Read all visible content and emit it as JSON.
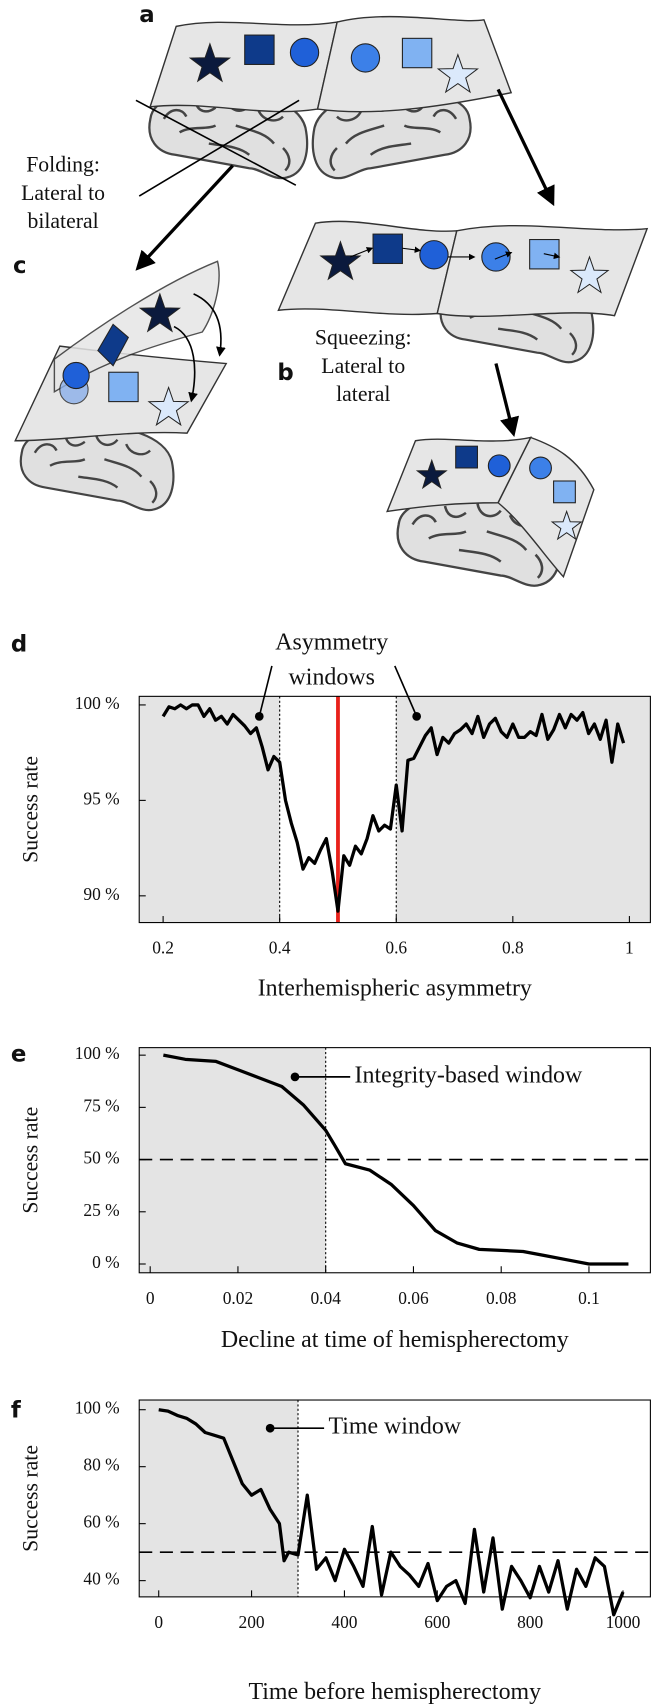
{
  "diagram": {
    "labels": [
      "a",
      "b",
      "c"
    ],
    "folding": [
      "Folding:",
      "Lateral to",
      "bilateral"
    ],
    "squeezing": [
      "Squeezing:",
      "Lateral to",
      "lateral"
    ]
  },
  "chart_data": [
    {
      "type": "line",
      "label": "d",
      "ylabel": "Success rate",
      "xlabel": "Interhemispheric asymmetry",
      "color": "#000000",
      "x": [
        0.2,
        0.21,
        0.22,
        0.23,
        0.24,
        0.25,
        0.26,
        0.27,
        0.28,
        0.29,
        0.3,
        0.31,
        0.32,
        0.33,
        0.34,
        0.35,
        0.36,
        0.37,
        0.38,
        0.39,
        0.4,
        0.41,
        0.42,
        0.43,
        0.44,
        0.45,
        0.46,
        0.47,
        0.48,
        0.49,
        0.5,
        0.51,
        0.52,
        0.53,
        0.54,
        0.55,
        0.56,
        0.57,
        0.58,
        0.59,
        0.6,
        0.61,
        0.62,
        0.63,
        0.64,
        0.65,
        0.66,
        0.67,
        0.68,
        0.69,
        0.7,
        0.71,
        0.72,
        0.73,
        0.74,
        0.75,
        0.76,
        0.77,
        0.78,
        0.79,
        0.8,
        0.81,
        0.82,
        0.83,
        0.84,
        0.85,
        0.86,
        0.87,
        0.88,
        0.89,
        0.9,
        0.91,
        0.92,
        0.93,
        0.94,
        0.95,
        0.96,
        0.97,
        0.98,
        0.99
      ],
      "values": [
        99.4,
        99.9,
        99.8,
        100,
        99.8,
        100,
        100,
        99.4,
        99.8,
        99.2,
        99.4,
        99.0,
        99.5,
        99.2,
        98.9,
        98.5,
        98.8,
        97.8,
        96.6,
        97.3,
        97.0,
        95.0,
        93.8,
        92.8,
        91.4,
        92.0,
        91.7,
        92.4,
        93.0,
        91.3,
        89.2,
        92.1,
        91.6,
        92.6,
        92.2,
        93.0,
        94.2,
        93.4,
        93.7,
        93.5,
        95.8,
        93.4,
        97.1,
        97.2,
        97.8,
        98.4,
        98.8,
        97.4,
        98.3,
        98.0,
        98.5,
        98.7,
        99.0,
        98.5,
        99.4,
        98.3,
        99.0,
        99.3,
        98.6,
        98.3,
        99.0,
        98.3,
        98.3,
        98.6,
        98.4,
        99.5,
        98.2,
        98.7,
        99.5,
        98.8,
        99.5,
        99.2,
        99.6,
        98.5,
        99.0,
        98.2,
        99.2,
        97.0,
        99.0,
        98.0
      ],
      "xlim": [
        0.159,
        1.036
      ],
      "ylim": [
        88.6,
        100.45
      ],
      "xticks": [
        0.2,
        0.4,
        0.6,
        0.8,
        1
      ],
      "yticks": [
        {
          "value": 90,
          "label": "90 %"
        },
        {
          "value": 95,
          "label": "95 %"
        },
        {
          "value": 100,
          "label": "100 %"
        }
      ],
      "shade_below": 0.4,
      "shade_above": 0.6,
      "marker_x": 0.5,
      "marker_color": "#e8211b",
      "annotation": {
        "text": [
          "Asymmetry",
          "windows"
        ],
        "points": [
          [
            0.365,
            99.4
          ],
          [
            0.635,
            99.4
          ]
        ]
      }
    },
    {
      "type": "line",
      "label": "e",
      "ylabel": "Success rate",
      "xlabel": "Decline at time of hemispherectomy",
      "color": "#000000",
      "x": [
        0.003,
        0.008,
        0.015,
        0.02,
        0.025,
        0.03,
        0.035,
        0.04,
        0.042,
        0.0445,
        0.05,
        0.055,
        0.06,
        0.065,
        0.07,
        0.075,
        0.08,
        0.085,
        0.09,
        0.095,
        0.1,
        0.105,
        0.109
      ],
      "values": [
        100,
        98,
        97,
        93,
        89,
        85,
        76,
        64,
        57,
        48,
        45,
        38,
        28,
        16,
        10,
        7,
        6.5,
        6,
        4,
        2,
        0,
        0,
        0
      ],
      "xlim": [
        -0.0025,
        0.114
      ],
      "ylim": [
        -4.2,
        103.6
      ],
      "xticks": [
        0,
        0.02,
        0.04,
        0.06,
        0.08,
        0.1
      ],
      "yticks": [
        {
          "value": 0,
          "label": "0 %"
        },
        {
          "value": 25,
          "label": "25 %"
        },
        {
          "value": 50,
          "label": "50 %"
        },
        {
          "value": 75,
          "label": "75 %"
        },
        {
          "value": 100,
          "label": "100 %"
        }
      ],
      "shade_below": 0.04,
      "hline": 50,
      "annotation": {
        "text": [
          "Integrity-based window"
        ],
        "points": [
          [
            0.033,
            89.6
          ]
        ]
      }
    },
    {
      "type": "line",
      "label": "f",
      "ylabel": "Success rate",
      "xlabel": "Time before hemispherectomy",
      "color": "#000000",
      "x": [
        0,
        20,
        40,
        60,
        80,
        100,
        120,
        140,
        160,
        180,
        200,
        220,
        240,
        260,
        270,
        280,
        300,
        320,
        340,
        360,
        380,
        400,
        420,
        440,
        460,
        480,
        500,
        520,
        540,
        560,
        580,
        600,
        620,
        640,
        660,
        680,
        700,
        720,
        740,
        760,
        780,
        800,
        820,
        840,
        860,
        880,
        900,
        920,
        940,
        960,
        980,
        1000
      ],
      "values": [
        100,
        99.5,
        98,
        97,
        95,
        92,
        91,
        90,
        82,
        74,
        70,
        72,
        65,
        60,
        47,
        50,
        49,
        70,
        44,
        48,
        40,
        51,
        45,
        38,
        59,
        35,
        50,
        45,
        42,
        38,
        46,
        33,
        38,
        40,
        32,
        58,
        36,
        55,
        30,
        45,
        40,
        34,
        45,
        36,
        47,
        30,
        44,
        38,
        48,
        45,
        28,
        36
      ],
      "xlim": [
        -42,
        1059
      ],
      "ylim": [
        34.3,
        103.4
      ],
      "xticks": [
        0,
        200,
        400,
        600,
        800,
        1000
      ],
      "yticks": [
        {
          "value": 40,
          "label": "40 %"
        },
        {
          "value": 60,
          "label": "60 %"
        },
        {
          "value": 80,
          "label": "80 %"
        },
        {
          "value": 100,
          "label": "100 %"
        }
      ],
      "shade_below": 300,
      "hline": 50,
      "annotation": {
        "text": [
          "Time window"
        ],
        "points": [
          [
            240,
            93.5
          ]
        ]
      }
    }
  ]
}
